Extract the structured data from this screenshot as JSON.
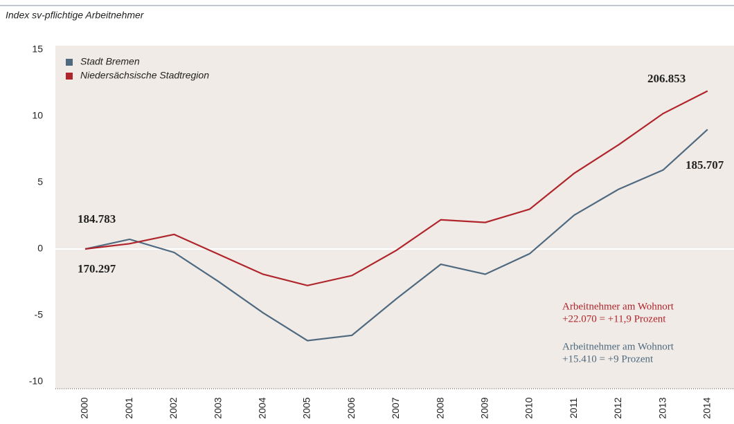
{
  "chart_data": {
    "type": "line",
    "subtitle": "Index sv-pflichtige Arbeitnehmer",
    "categories": [
      "2000",
      "2001",
      "2002",
      "2003",
      "2004",
      "2005",
      "2006",
      "2007",
      "2008",
      "2009",
      "2010",
      "2011",
      "2012",
      "2013",
      "2014"
    ],
    "series": [
      {
        "name": "Stadt Bremen",
        "color": "#4f6a80",
        "values": [
          0,
          0.73,
          -0.26,
          -2.45,
          -4.8,
          -6.9,
          -6.5,
          -3.75,
          -1.15,
          -1.9,
          -0.35,
          2.55,
          4.5,
          5.95,
          9.0
        ]
      },
      {
        "name": "Niedersächsische Stadtregion",
        "color": "#b0242b",
        "values": [
          0,
          0.4,
          1.1,
          -0.4,
          -1.9,
          -2.75,
          -2.0,
          -0.1,
          2.2,
          2.0,
          3.0,
          5.7,
          7.85,
          10.2,
          11.9
        ]
      }
    ],
    "ylim": [
      -10,
      15
    ],
    "yticks": [
      -10,
      -5,
      0,
      5,
      10,
      15
    ],
    "annotations": [
      "184.783",
      "170.297",
      "206.853",
      "185.707",
      "Arbeitnehmer am Wohnort",
      "+22.070 = +11,9 Prozent",
      "Arbeitnehmer am Wohnort",
      "+15.410 = +9 Prozent"
    ]
  }
}
